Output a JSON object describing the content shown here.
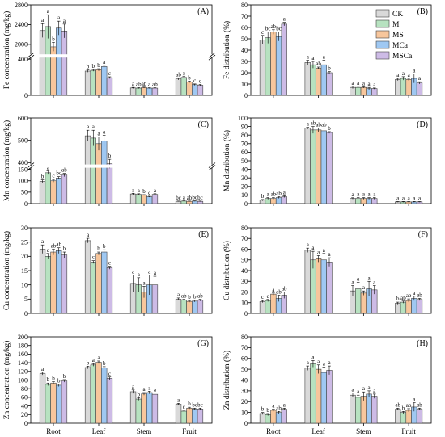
{
  "colors": {
    "CK": "#d9d9d9",
    "M": "#b7e2c0",
    "MS": "#f7c69c",
    "MCa": "#9fc8f2",
    "MSCa": "#cdbbe6",
    "axis": "#000000",
    "break_mark": "#ffffff"
  },
  "legend": [
    "CK",
    "M",
    "MS",
    "MCa",
    "MSCa"
  ],
  "chart_data": [
    {
      "panel": "(A)",
      "type": "bar",
      "ylabel": "Fe concentration (mg/kg)",
      "categories": [
        "Root",
        "Leaf",
        "Stem",
        "Fruit"
      ],
      "ylim": [
        0,
        2800
      ],
      "yticks": [
        0,
        400,
        2000,
        2400,
        2800
      ],
      "axis_break": {
        "from": 500,
        "to": 1700,
        "break_y": 400
      },
      "series": [
        {
          "name": "CK",
          "values": [
            2280,
            268,
            82,
            182
          ],
          "errors": [
            140,
            12,
            6,
            12
          ],
          "letters": [
            "a",
            "b",
            "a",
            "ab"
          ]
        },
        {
          "name": "M",
          "values": [
            2360,
            276,
            80,
            198
          ],
          "errors": [
            240,
            10,
            5,
            14
          ],
          "letters": [
            "a",
            "b",
            "ab",
            "a"
          ]
        },
        {
          "name": "MS",
          "values": [
            1950,
            282,
            86,
            148
          ],
          "errors": [
            90,
            12,
            5,
            10
          ],
          "letters": [
            "b",
            "b",
            "ab",
            "b"
          ]
        },
        {
          "name": "MCa",
          "values": [
            2330,
            318,
            80,
            118
          ],
          "errors": [
            140,
            14,
            4,
            8
          ],
          "letters": [
            "a",
            "a",
            "a",
            "c"
          ]
        },
        {
          "name": "MSCa",
          "values": [
            2270,
            195,
            80,
            112
          ],
          "errors": [
            140,
            10,
            4,
            8
          ],
          "letters": [
            "a",
            "c",
            "ab",
            "c"
          ]
        }
      ]
    },
    {
      "panel": "(B)",
      "type": "bar",
      "ylabel": "Fe distribution (%)",
      "categories": [
        "Root",
        "Leaf",
        "Stem",
        "Fruit"
      ],
      "ylim": [
        0,
        80
      ],
      "yticks": [
        0,
        10,
        20,
        30,
        40,
        50,
        60,
        70,
        80
      ],
      "series": [
        {
          "name": "CK",
          "values": [
            49,
            29,
            7,
            14
          ],
          "errors": [
            4,
            2,
            1,
            1
          ],
          "letters": [
            "c",
            "a",
            "a",
            "a"
          ]
        },
        {
          "name": "M",
          "values": [
            51,
            27,
            7,
            15
          ],
          "errors": [
            5,
            3,
            1,
            1.5
          ],
          "letters": [
            "bc",
            "a",
            "a",
            "a"
          ]
        },
        {
          "name": "MS",
          "values": [
            56,
            24,
            7,
            14
          ],
          "errors": [
            2,
            1,
            0.5,
            1
          ],
          "letters": [
            "ab",
            "ab",
            "a",
            "a"
          ]
        },
        {
          "name": "MCa",
          "values": [
            52,
            27,
            6,
            15
          ],
          "errors": [
            4,
            4,
            1,
            4
          ],
          "letters": [
            "bc",
            "a",
            "a",
            "a"
          ]
        },
        {
          "name": "MSCa",
          "values": [
            63,
            20,
            6,
            11
          ],
          "errors": [
            1.5,
            1,
            0.5,
            1
          ],
          "letters": [
            "a",
            "b",
            "a",
            "a"
          ]
        }
      ]
    },
    {
      "panel": "(C)",
      "type": "bar",
      "ylabel": "Mn concentration (mg/kg)",
      "categories": [
        "Root",
        "Leaf",
        "Stem",
        "Fruit"
      ],
      "ylim": [
        0,
        600
      ],
      "yticks": [
        0,
        50,
        100,
        150,
        400,
        500,
        600
      ],
      "axis_break": {
        "from": 160,
        "to": 370,
        "break_y": 150
      },
      "series": [
        {
          "name": "CK",
          "values": [
            98,
            520,
            42,
            10
          ],
          "errors": [
            6,
            25,
            3,
            1
          ],
          "letters": [
            "b",
            "a",
            "a",
            "bc"
          ]
        },
        {
          "name": "M",
          "values": [
            135,
            510,
            40,
            11
          ],
          "errors": [
            8,
            35,
            3,
            1
          ],
          "letters": [
            "a",
            "a",
            "a",
            "a"
          ]
        },
        {
          "name": "MS",
          "values": [
            100,
            485,
            37,
            10
          ],
          "errors": [
            6,
            30,
            2,
            1
          ],
          "letters": [
            "c",
            "a",
            "b",
            "ab"
          ]
        },
        {
          "name": "MCa",
          "values": [
            112,
            497,
            30,
            11
          ],
          "errors": [
            6,
            25,
            2,
            1
          ],
          "letters": [
            "bc",
            "a",
            "c",
            "bc"
          ]
        },
        {
          "name": "MSCa",
          "values": [
            125,
            395,
            40,
            10
          ],
          "errors": [
            7,
            20,
            3,
            1
          ],
          "letters": [
            "ab",
            "b",
            "a",
            "bc"
          ]
        }
      ]
    },
    {
      "panel": "(D)",
      "type": "bar",
      "ylabel": "Mn distribution (%)",
      "categories": [
        "Root",
        "Leaf",
        "Stem",
        "Fruit"
      ],
      "ylim": [
        0,
        100
      ],
      "yticks": [
        0,
        10,
        20,
        30,
        40,
        50,
        60,
        70,
        80,
        90,
        100
      ],
      "series": [
        {
          "name": "CK",
          "values": [
            4,
            88,
            6,
            2
          ],
          "errors": [
            0.8,
            1,
            0.8,
            0.4
          ],
          "letters": [
            "b",
            "a",
            "a",
            "a"
          ]
        },
        {
          "name": "M",
          "values": [
            6,
            86,
            6,
            2
          ],
          "errors": [
            1,
            4,
            1,
            0.5
          ],
          "letters": [
            "a",
            "ab",
            "a",
            "a"
          ]
        },
        {
          "name": "MS",
          "values": [
            6,
            86,
            6,
            2
          ],
          "errors": [
            1,
            2,
            1,
            0.4
          ],
          "letters": [
            "ab",
            "ab",
            "a",
            "a"
          ]
        },
        {
          "name": "MCa",
          "values": [
            7,
            85,
            6,
            2
          ],
          "errors": [
            1,
            3,
            1,
            0.5
          ],
          "letters": [
            "ab",
            "ab",
            "a",
            "a"
          ]
        },
        {
          "name": "MSCa",
          "values": [
            8,
            83,
            6,
            2
          ],
          "errors": [
            1,
            1,
            1,
            0.4
          ],
          "letters": [
            "a",
            "b",
            "a",
            "a"
          ]
        }
      ]
    },
    {
      "panel": "(E)",
      "type": "bar",
      "ylabel": "Cu concentration (mg/kg)",
      "categories": [
        "Root",
        "Leaf",
        "Stem",
        "Fruit"
      ],
      "ylim": [
        0,
        30
      ],
      "yticks": [
        0,
        5,
        10,
        15,
        20,
        25,
        30
      ],
      "series": [
        {
          "name": "CK",
          "values": [
            22.5,
            25.5,
            10.5,
            5
          ],
          "errors": [
            1.5,
            0.8,
            3,
            0.4
          ],
          "letters": [
            "a",
            "a",
            "a",
            "a"
          ]
        },
        {
          "name": "M",
          "values": [
            20,
            18,
            10,
            4.7
          ],
          "errors": [
            1,
            0.5,
            2.5,
            0.3
          ],
          "letters": [
            "c",
            "c",
            "a",
            "ab"
          ]
        },
        {
          "name": "MS",
          "values": [
            21.5,
            21,
            7.5,
            4.2
          ],
          "errors": [
            1,
            0.5,
            2,
            0.3
          ],
          "letters": [
            "ab",
            "b",
            "a",
            "b"
          ]
        },
        {
          "name": "MCa",
          "values": [
            22,
            21.5,
            10,
            4.3
          ],
          "errors": [
            1,
            0.8,
            3.5,
            0.3
          ],
          "letters": [
            "ab",
            "b",
            "a",
            "b"
          ]
        },
        {
          "name": "MSCa",
          "values": [
            20.5,
            16,
            10,
            4.6
          ],
          "errors": [
            1,
            0.5,
            3,
            0.3
          ],
          "letters": [
            "b",
            "c",
            "a",
            "ab"
          ]
        }
      ]
    },
    {
      "panel": "(F)",
      "type": "bar",
      "ylabel": "Cu distribution (%)",
      "categories": [
        "Root",
        "Leaf",
        "Stem",
        "Fruit"
      ],
      "ylim": [
        0,
        80
      ],
      "yticks": [
        0,
        10,
        20,
        30,
        40,
        50,
        60,
        70,
        80
      ],
      "series": [
        {
          "name": "CK",
          "values": [
            11,
            59,
            21,
            9.5
          ],
          "errors": [
            1,
            2,
            5,
            1
          ],
          "letters": [
            "c",
            "a",
            "a",
            "b"
          ]
        },
        {
          "name": "M",
          "values": [
            12,
            50,
            23,
            10.5
          ],
          "errors": [
            1,
            8,
            6,
            1
          ],
          "letters": [
            "c",
            "a",
            "a",
            "ab"
          ]
        },
        {
          "name": "MS",
          "values": [
            18,
            51,
            19,
            12
          ],
          "errors": [
            1,
            3,
            2,
            1.5
          ],
          "letters": [
            "a",
            "a",
            "a",
            "ab"
          ]
        },
        {
          "name": "MCa",
          "values": [
            14,
            50,
            23,
            14
          ],
          "errors": [
            3,
            6,
            7,
            2
          ],
          "letters": [
            "ab",
            "a",
            "a",
            "a"
          ]
        },
        {
          "name": "MSCa",
          "values": [
            17,
            48,
            22,
            13
          ],
          "errors": [
            3,
            4,
            4,
            1
          ],
          "letters": [
            "ab",
            "a",
            "a",
            "ab"
          ]
        }
      ]
    },
    {
      "panel": "(G)",
      "type": "bar",
      "ylabel": "Zn concentration (mg/kg)",
      "categories": [
        "Root",
        "Leaf",
        "Stem",
        "Fruit"
      ],
      "ylim": [
        0,
        200
      ],
      "yticks": [
        0,
        20,
        40,
        60,
        80,
        100,
        120,
        140,
        160,
        180,
        200
      ],
      "series": [
        {
          "name": "CK",
          "values": [
            115,
            129,
            73,
            44
          ],
          "errors": [
            3,
            3,
            4,
            2
          ],
          "letters": [
            "a",
            "b",
            "a",
            "a"
          ]
        },
        {
          "name": "M",
          "values": [
            90,
            135,
            56,
            28
          ],
          "errors": [
            3,
            3,
            3,
            2
          ],
          "letters": [
            "b",
            "a",
            "b",
            "c"
          ]
        },
        {
          "name": "MS",
          "values": [
            93,
            141,
            68,
            35
          ],
          "errors": [
            3,
            3,
            3,
            2
          ],
          "letters": [
            "b",
            "a",
            "a",
            "b"
          ]
        },
        {
          "name": "MCa",
          "values": [
            88,
            128,
            71,
            33
          ],
          "errors": [
            3,
            3,
            3,
            2
          ],
          "letters": [
            "b",
            "b",
            "a",
            "bc"
          ]
        },
        {
          "name": "MSCa",
          "values": [
            98,
            104,
            67,
            33
          ],
          "errors": [
            3,
            3,
            3,
            2
          ],
          "letters": [
            "b",
            "c",
            "a",
            "bc"
          ]
        }
      ]
    },
    {
      "panel": "(H)",
      "type": "bar",
      "ylabel": "Zn distribution (%)",
      "categories": [
        "Root",
        "Leaf",
        "Stem",
        "Fruit"
      ],
      "ylim": [
        0,
        80
      ],
      "yticks": [
        0,
        10,
        20,
        30,
        40,
        50,
        60,
        70,
        80
      ],
      "series": [
        {
          "name": "CK",
          "values": [
            9,
            51,
            26,
            13
          ],
          "errors": [
            1,
            2,
            2,
            1
          ],
          "letters": [
            "b",
            "a",
            "a",
            "ab"
          ]
        },
        {
          "name": "M",
          "values": [
            8,
            55,
            24,
            10
          ],
          "errors": [
            1,
            3,
            2,
            1
          ],
          "letters": [
            "b",
            "a",
            "a",
            "b"
          ]
        },
        {
          "name": "MS",
          "values": [
            12,
            50,
            25,
            12
          ],
          "errors": [
            1,
            4,
            4,
            1.5
          ],
          "letters": [
            "a",
            "a",
            "a",
            "ab"
          ]
        },
        {
          "name": "MCa",
          "values": [
            10,
            47,
            27,
            15
          ],
          "errors": [
            1,
            5,
            3,
            4
          ],
          "letters": [
            "ab",
            "a",
            "a",
            "a"
          ]
        },
        {
          "name": "MSCa",
          "values": [
            13,
            49,
            25,
            13
          ],
          "errors": [
            1,
            4,
            2,
            1
          ],
          "letters": [
            "a",
            "a",
            "a",
            "ab"
          ]
        }
      ]
    }
  ]
}
